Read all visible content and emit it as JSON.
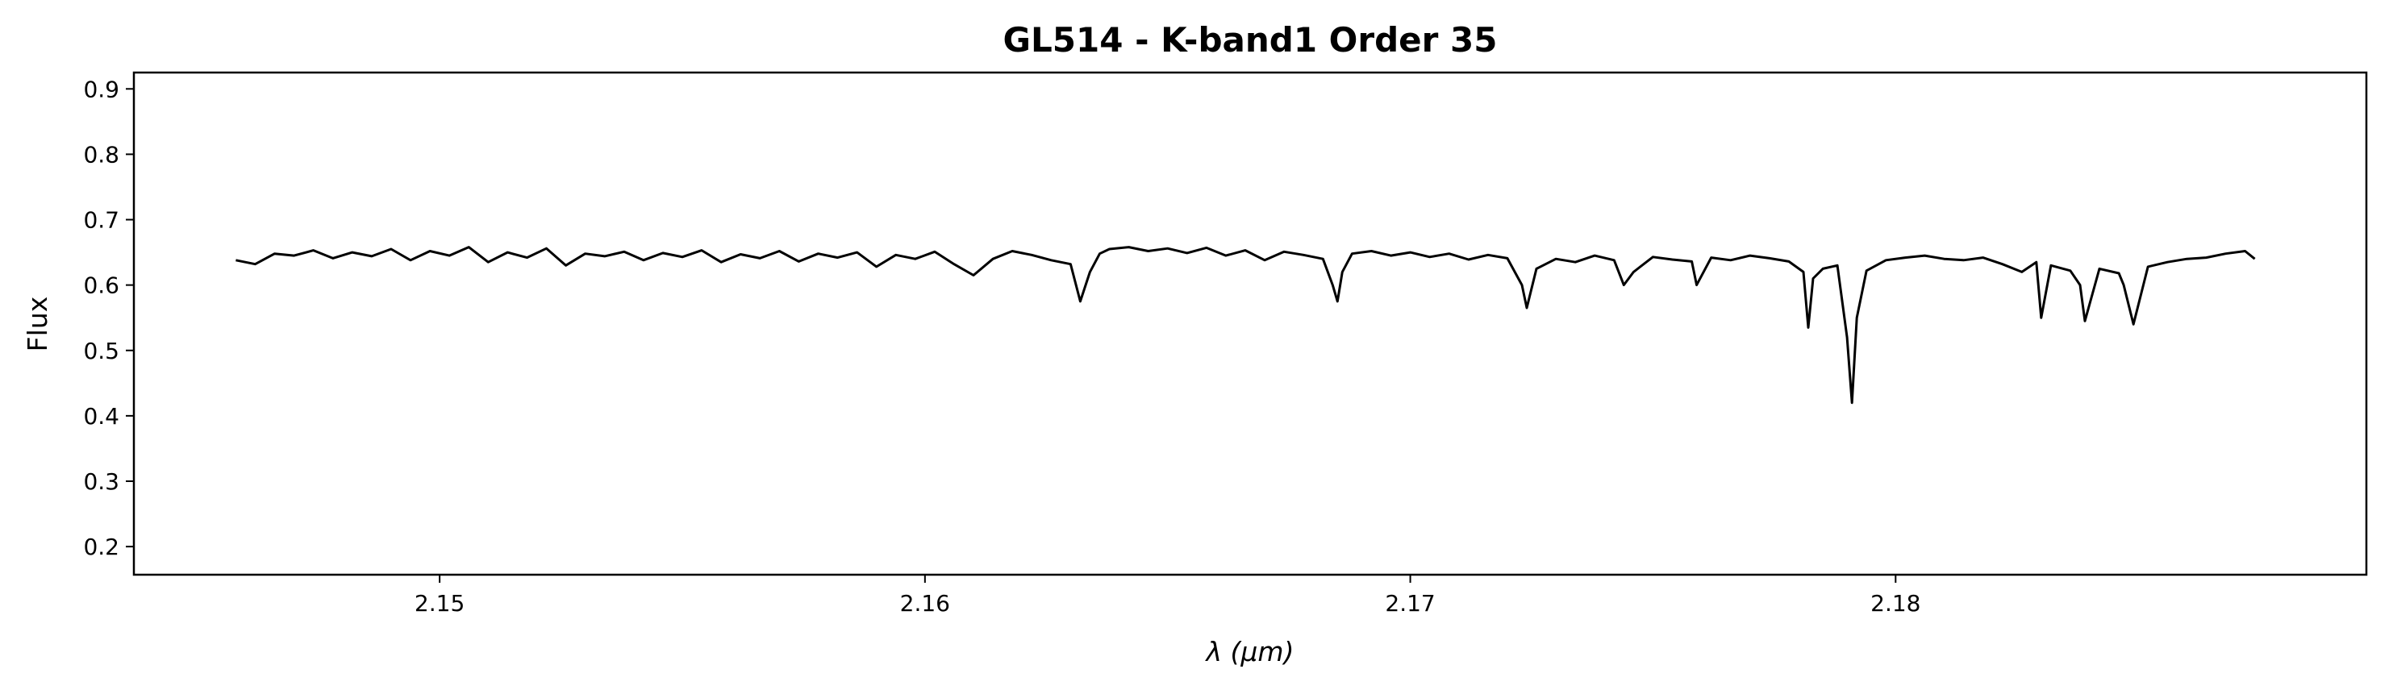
{
  "chart_data": {
    "type": "line",
    "title": "GL514 - K-band1 Order 35",
    "xlabel": "λ (μm)",
    "ylabel": "Flux",
    "xlim": [
      2.1437,
      2.1897
    ],
    "ylim": [
      0.157,
      0.925
    ],
    "xticks": [
      2.15,
      2.16,
      2.17,
      2.18
    ],
    "xtick_labels": [
      "2.15",
      "2.16",
      "2.17",
      "2.18"
    ],
    "yticks": [
      0.2,
      0.3,
      0.4,
      0.5,
      0.6,
      0.7,
      0.8,
      0.9
    ],
    "ytick_labels": [
      "0.2",
      "0.3",
      "0.4",
      "0.5",
      "0.6",
      "0.7",
      "0.8",
      "0.9"
    ],
    "grid": false,
    "line_color": "#000000",
    "series": [
      {
        "x": [
          2.1458,
          2.1462,
          2.1466,
          2.147,
          2.1474,
          2.1478,
          2.1482,
          2.1486,
          2.149,
          2.1494,
          2.1498,
          2.1502,
          2.1506,
          2.151,
          2.1514,
          2.1518,
          2.1522,
          2.1526,
          2.153,
          2.1534,
          2.1538,
          2.1542,
          2.1546,
          2.155,
          2.1554,
          2.1558,
          2.1562,
          2.1566,
          2.157,
          2.1574,
          2.1578,
          2.1582,
          2.1586,
          2.159,
          2.1594,
          2.1598,
          2.1602,
          2.1606,
          2.161,
          2.1614,
          2.1618,
          2.1622,
          2.1626,
          2.163,
          2.1632,
          2.1634,
          2.1636,
          2.1638,
          2.1642,
          2.1646,
          2.165,
          2.1654,
          2.1658,
          2.1662,
          2.1666,
          2.167,
          2.1674,
          2.1678,
          2.1682,
          2.1684,
          2.1685,
          2.1686,
          2.1688,
          2.1692,
          2.1696,
          2.17,
          2.1704,
          2.1708,
          2.1712,
          2.1716,
          2.172,
          2.1723,
          2.1724,
          2.1726,
          2.173,
          2.1734,
          2.1738,
          2.1742,
          2.1744,
          2.1746,
          2.175,
          2.1754,
          2.1758,
          2.1759,
          2.1762,
          2.1766,
          2.177,
          2.1774,
          2.1778,
          2.1781,
          2.1782,
          2.1783,
          2.1785,
          2.1788,
          2.179,
          2.1791,
          2.1792,
          2.1794,
          2.1798,
          2.1802,
          2.1806,
          2.181,
          2.1814,
          2.1818,
          2.1822,
          2.1826,
          2.1829,
          2.183,
          2.1832,
          2.1836,
          2.1838,
          2.1839,
          2.1842,
          2.1846,
          2.1847,
          2.1849,
          2.1852,
          2.1856,
          2.186,
          2.1864,
          2.1868,
          2.1872,
          2.1874
        ],
        "values": [
          0.638,
          0.632,
          0.648,
          0.645,
          0.653,
          0.641,
          0.65,
          0.644,
          0.655,
          0.638,
          0.652,
          0.645,
          0.658,
          0.635,
          0.65,
          0.642,
          0.656,
          0.63,
          0.648,
          0.644,
          0.651,
          0.638,
          0.649,
          0.643,
          0.653,
          0.635,
          0.647,
          0.641,
          0.652,
          0.636,
          0.648,
          0.642,
          0.65,
          0.628,
          0.646,
          0.64,
          0.651,
          0.632,
          0.615,
          0.64,
          0.652,
          0.646,
          0.638,
          0.632,
          0.575,
          0.62,
          0.648,
          0.655,
          0.658,
          0.652,
          0.656,
          0.649,
          0.657,
          0.645,
          0.653,
          0.638,
          0.651,
          0.646,
          0.64,
          0.6,
          0.575,
          0.62,
          0.648,
          0.652,
          0.645,
          0.65,
          0.643,
          0.648,
          0.639,
          0.646,
          0.641,
          0.6,
          0.565,
          0.625,
          0.64,
          0.635,
          0.645,
          0.638,
          0.6,
          0.62,
          0.643,
          0.639,
          0.636,
          0.6,
          0.642,
          0.638,
          0.645,
          0.641,
          0.636,
          0.62,
          0.535,
          0.61,
          0.625,
          0.63,
          0.52,
          0.42,
          0.55,
          0.622,
          0.638,
          0.642,
          0.645,
          0.64,
          0.638,
          0.642,
          0.632,
          0.62,
          0.635,
          0.55,
          0.63,
          0.622,
          0.6,
          0.545,
          0.625,
          0.618,
          0.6,
          0.54,
          0.628,
          0.635,
          0.64,
          0.642,
          0.648,
          0.652,
          0.64
        ]
      }
    ]
  }
}
